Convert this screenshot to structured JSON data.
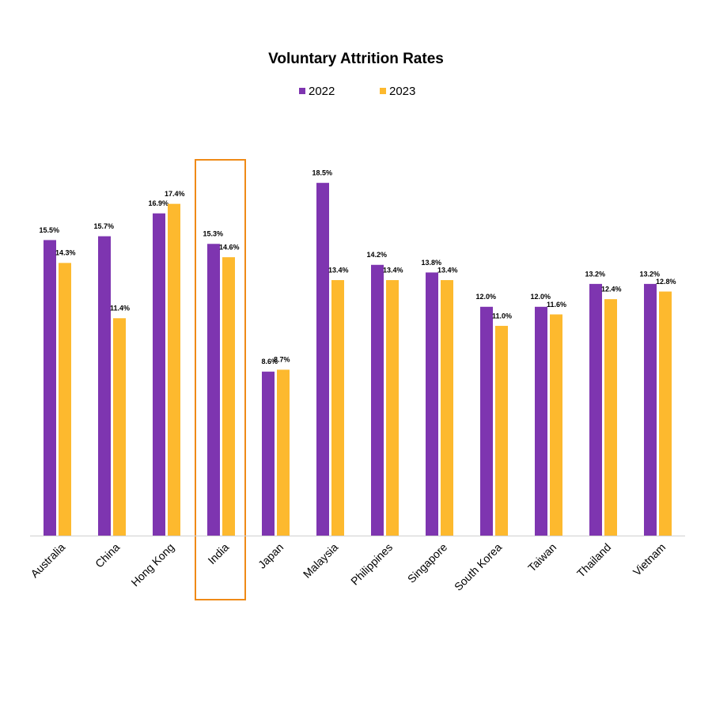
{
  "chart_data": {
    "type": "bar",
    "title": "Voluntary Attrition Rates",
    "categories": [
      "Australia",
      "China",
      "Hong Kong",
      "India",
      "Japan",
      "Malaysia",
      "Philippines",
      "Singapore",
      "South Korea",
      "Taiwan",
      "Thailand",
      "Vietnam"
    ],
    "series": [
      {
        "name": "2022",
        "color": "#7e35b0",
        "values": [
          15.5,
          15.7,
          16.9,
          15.3,
          8.6,
          18.5,
          14.2,
          13.8,
          12.0,
          12.0,
          13.2,
          13.2
        ],
        "value_labels": [
          "15.5%",
          "15.7%",
          "16.9%",
          "15.3%",
          "8.6%",
          "18.5%",
          "14.2%",
          "13.8%",
          "12.0%",
          "12.0%",
          "13.2%",
          "13.2%"
        ]
      },
      {
        "name": "2023",
        "color": "#fdb92e",
        "values": [
          14.3,
          11.4,
          17.4,
          14.6,
          8.7,
          13.4,
          13.4,
          13.4,
          11.0,
          11.6,
          12.4,
          12.8
        ],
        "value_labels": [
          "14.3%",
          "11.4%",
          "17.4%",
          "14.6%",
          "8.7%",
          "13.4%",
          "13.4%",
          "13.4%",
          "11.0%",
          "11.6%",
          "12.4%",
          "12.8%"
        ]
      }
    ],
    "ylim": [
      0,
      20
    ],
    "grid": false
  }
}
